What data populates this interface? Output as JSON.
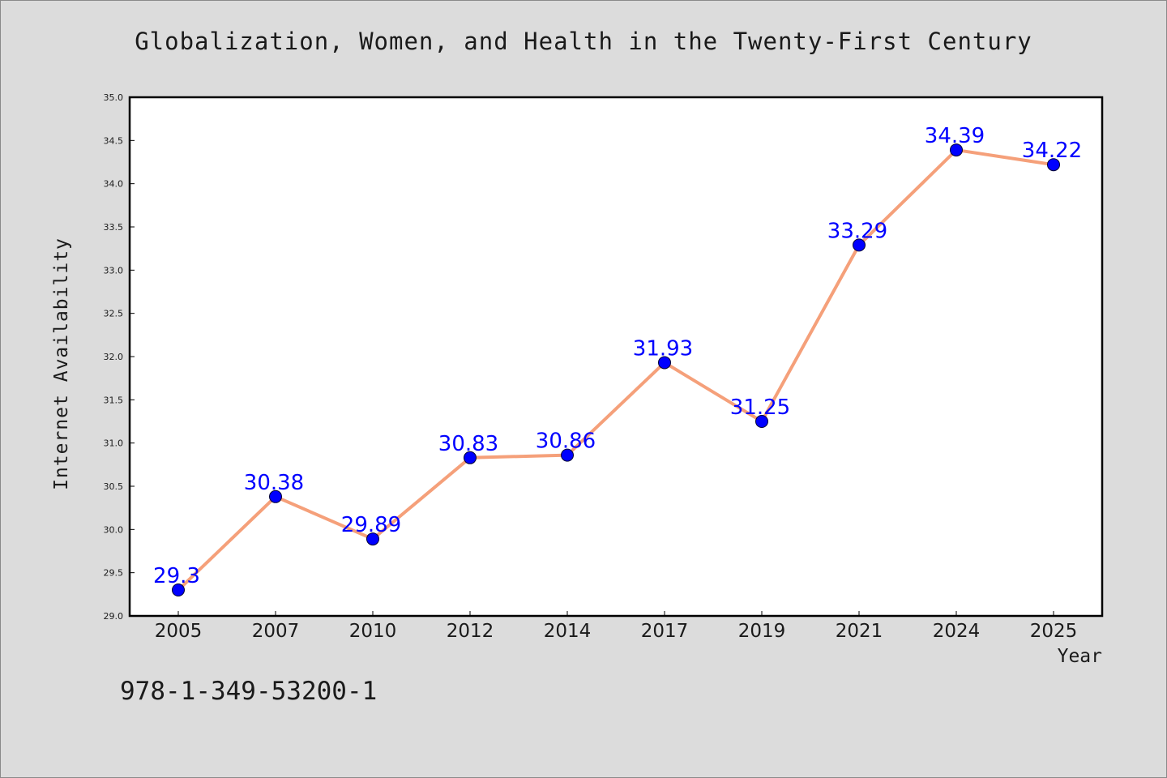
{
  "chart_data": {
    "type": "line",
    "title": "Globalization, Women, and Health in the Twenty-First Century",
    "xlabel": "Year",
    "ylabel": "Internet Availability",
    "categories": [
      "2005",
      "2007",
      "2010",
      "2012",
      "2014",
      "2017",
      "2019",
      "2021",
      "2024",
      "2025"
    ],
    "values": [
      29.3,
      30.38,
      29.89,
      30.83,
      30.86,
      31.93,
      31.25,
      33.29,
      34.39,
      34.22
    ],
    "data_labels": [
      "29.3",
      "30.38",
      "29.89",
      "30.83",
      "30.86",
      "31.93",
      "31.25",
      "33.29",
      "34.39",
      "34.22"
    ],
    "ylim": [
      29.0,
      35.0
    ],
    "yticks": [
      "29.0",
      "29.5",
      "30.0",
      "30.5",
      "31.0",
      "31.5",
      "32.0",
      "32.5",
      "33.0",
      "33.5",
      "34.0",
      "34.5",
      "35.0"
    ],
    "grid": false,
    "line_color": "#f5a07a",
    "marker_color": "#0000ff",
    "label_color": "#0000ff"
  },
  "footer": {
    "isbn": "978-1-349-53200-1"
  }
}
